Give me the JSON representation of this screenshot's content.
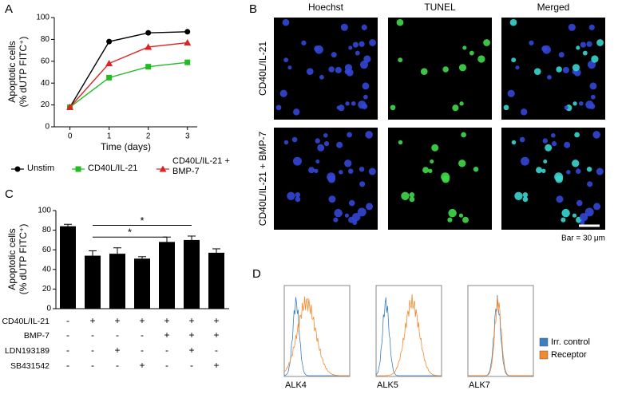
{
  "panel_labels": [
    "A",
    "B",
    "C",
    "D"
  ],
  "chart_data": [
    {
      "type": "line",
      "ylabel": [
        "Apoptotic cells",
        "(% dUTP FITC⁺)"
      ],
      "xlabel": "Time (days)",
      "x": [
        0,
        1,
        2,
        3
      ],
      "xlim": [
        -0.4,
        3.25
      ],
      "xticks": [
        0,
        1,
        2,
        3
      ],
      "ylim": [
        0,
        100
      ],
      "yticks": [
        0,
        20,
        40,
        60,
        80,
        100
      ],
      "series": [
        {
          "name": "Unstim",
          "color": "#000000",
          "marker": "circle",
          "values": [
            18,
            78,
            86,
            87
          ]
        },
        {
          "name": "CD40L/IL-21",
          "color": "#22bb22",
          "marker": "square",
          "values": [
            18,
            45,
            55,
            59
          ]
        },
        {
          "name": "CD40L/IL-21 + BMP-7",
          "color": "#dd2222",
          "marker": "triangle",
          "values": [
            18,
            58,
            73,
            77
          ]
        }
      ]
    },
    {
      "type": "bar",
      "ylabel": [
        "Apoptotic cells",
        "(% dUTP FITC⁺)"
      ],
      "ylim": [
        0,
        100
      ],
      "yticks": [
        0,
        20,
        40,
        60,
        80,
        100
      ],
      "color": "#000000",
      "values": [
        84,
        54,
        56,
        51,
        68,
        70,
        57
      ],
      "errors": [
        2,
        5,
        6,
        2,
        5,
        4,
        4
      ],
      "annotations": [
        {
          "from": 1,
          "to": 4,
          "y": 73,
          "label": "*"
        },
        {
          "from": 1,
          "to": 5,
          "y": 85,
          "label": "*"
        }
      ],
      "conditions": [
        {
          "label": "CD40L/IL-21",
          "values": [
            "-",
            "+",
            "+",
            "+",
            "+",
            "+",
            "+"
          ]
        },
        {
          "label": "BMP-7",
          "values": [
            "-",
            "-",
            "-",
            "-",
            "+",
            "+",
            "+"
          ]
        },
        {
          "label": "LDN193189",
          "values": [
            "-",
            "-",
            "+",
            "-",
            "-",
            "+",
            "-"
          ]
        },
        {
          "label": "SB431542",
          "values": [
            "-",
            "-",
            "-",
            "+",
            "-",
            "-",
            "+"
          ]
        }
      ]
    }
  ],
  "micrographs": {
    "columns": [
      "Hoechst",
      "TUNEL",
      "Merged"
    ],
    "rows": [
      "CD40L/IL-21",
      "CD40L/IL-21 + BMP-7"
    ],
    "scale": "Bar = 30 μm"
  },
  "histograms": {
    "panels": [
      "ALK4",
      "ALK5",
      "ALK7"
    ],
    "legend": [
      {
        "name": "Irr. control",
        "color": "#3a7fbf"
      },
      {
        "name": "Receptor",
        "color": "#f28a2e"
      }
    ]
  }
}
